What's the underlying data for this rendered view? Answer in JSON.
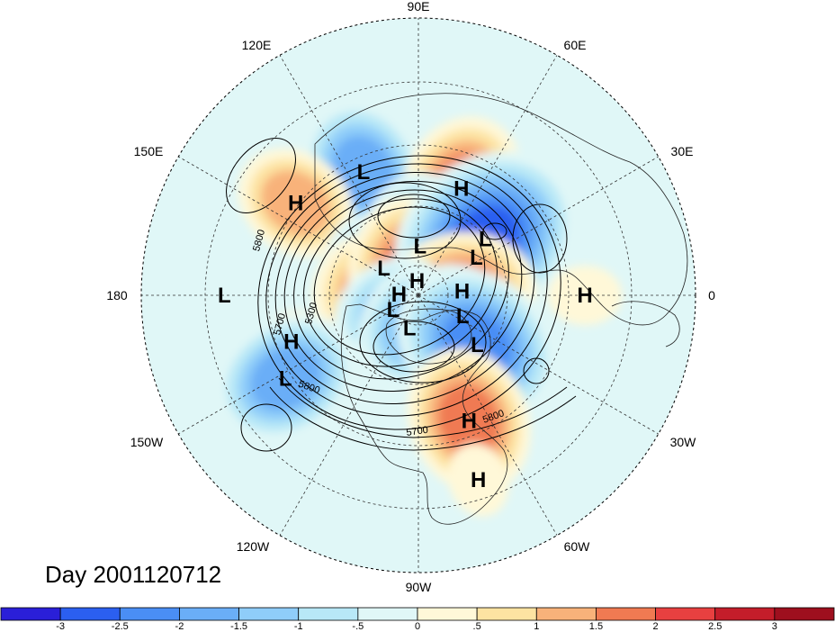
{
  "chart_data": {
    "type": "heatmap",
    "title": "Day 2001120712",
    "projection": "north polar stereographic",
    "longitude_labels": [
      {
        "lon": 90,
        "text": "90E"
      },
      {
        "lon": 60,
        "text": "60E"
      },
      {
        "lon": 30,
        "text": "30E"
      },
      {
        "lon": 0,
        "text": "0"
      },
      {
        "lon": -30,
        "text": "30W"
      },
      {
        "lon": -60,
        "text": "60W"
      },
      {
        "lon": -90,
        "text": "90W"
      },
      {
        "lon": -120,
        "text": "120W"
      },
      {
        "lon": -150,
        "text": "150W"
      },
      {
        "lon": 180,
        "text": "180"
      },
      {
        "lon": 150,
        "text": "150E"
      },
      {
        "lon": 120,
        "text": "120E"
      }
    ],
    "contour_labels": [
      "5800",
      "5300",
      "5700",
      "5800",
      "5700",
      "5800"
    ],
    "pressure_centers": [
      {
        "label": "L",
        "lon": 114,
        "lat": 38,
        "anomaly": -1.8
      },
      {
        "label": "H",
        "lon": 68,
        "lat": 45,
        "anomaly": 1.9
      },
      {
        "label": "H",
        "lon": 143,
        "lat": 32,
        "anomaly": 1.6
      },
      {
        "label": "L",
        "lon": 88,
        "lat": 70,
        "anomaly": -2.0
      },
      {
        "label": "L",
        "lon": 142,
        "lat": 72,
        "anomaly": -1.3
      },
      {
        "label": "H",
        "lon": 178,
        "lat": 82,
        "anomaly": 2.3
      },
      {
        "label": "H",
        "lon": 95,
        "lat": 84,
        "anomaly": 2.6
      },
      {
        "label": "L",
        "lon": 33,
        "lat": 62,
        "anomaly": -2.6
      },
      {
        "label": "L",
        "lon": 40,
        "lat": 55,
        "anomaly": -2.9
      },
      {
        "label": "H",
        "lon": 5,
        "lat": 72,
        "anomaly": 1.9
      },
      {
        "label": "H",
        "lon": 0,
        "lat": 28,
        "anomaly": 0.6
      },
      {
        "label": "L",
        "lon": 180,
        "lat": 20,
        "anomaly": -0.4
      },
      {
        "label": "L",
        "lon": -150,
        "lat": 78,
        "anomaly": -1.4
      },
      {
        "label": "L",
        "lon": -105,
        "lat": 76,
        "anomaly": -1.3
      },
      {
        "label": "L",
        "lon": -25,
        "lat": 70,
        "anomaly": -1.5
      },
      {
        "label": "L",
        "lon": -40,
        "lat": 59,
        "anomaly": -2.7
      },
      {
        "label": "H",
        "lon": -160,
        "lat": 38,
        "anomaly": 0.6
      },
      {
        "label": "L",
        "lon": -148,
        "lat": 31,
        "anomaly": -2.0
      },
      {
        "label": "H",
        "lon": -68,
        "lat": 38,
        "anomaly": 1.8
      },
      {
        "label": "H",
        "lon": -72,
        "lat": 20,
        "anomaly": 0.6
      }
    ],
    "colorbar": {
      "ticks": [
        "-3",
        "-2.5",
        "-2",
        "-1.5",
        "-1",
        "-.5",
        "0",
        ".5",
        "1",
        "1.5",
        "2",
        "2.5",
        "3"
      ],
      "colors": [
        "#2a1fd8",
        "#2b5ff0",
        "#4a8ef5",
        "#6aaef7",
        "#8fcdf9",
        "#b8e8f7",
        "#e0f7f7",
        "#fff8d8",
        "#fde3a2",
        "#f8b27a",
        "#f07a52",
        "#e84040",
        "#c41d2a",
        "#9e0f1e"
      ]
    },
    "grid": true,
    "legend": "bottom"
  }
}
